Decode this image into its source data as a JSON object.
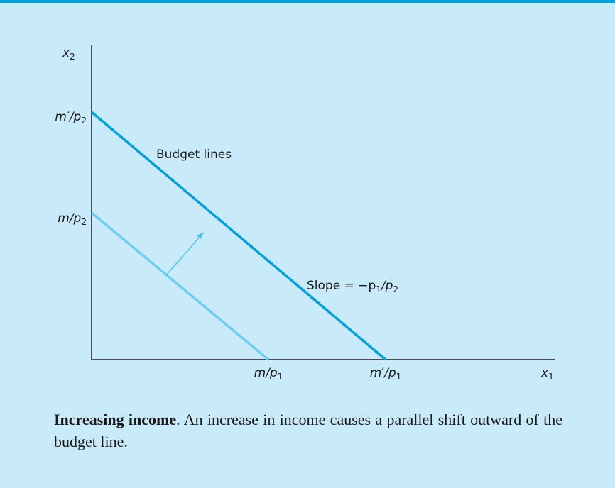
{
  "diagram": {
    "y_axis_label": [
      "x",
      "2"
    ],
    "x_axis_label": [
      "x",
      "1"
    ],
    "y_intercept_new": [
      "m′/p",
      "2"
    ],
    "y_intercept_old": [
      "m/p",
      "2"
    ],
    "x_intercept_old": [
      "m/p",
      "1"
    ],
    "x_intercept_new": [
      "m′/p",
      "1"
    ],
    "line_label": "Budget lines",
    "slope_label": [
      "Slope = −p",
      "1",
      "/p",
      "2"
    ]
  },
  "caption": {
    "title": "Increasing income",
    "text": ". An increase in income causes a parallel shift outward of the budget line."
  }
}
